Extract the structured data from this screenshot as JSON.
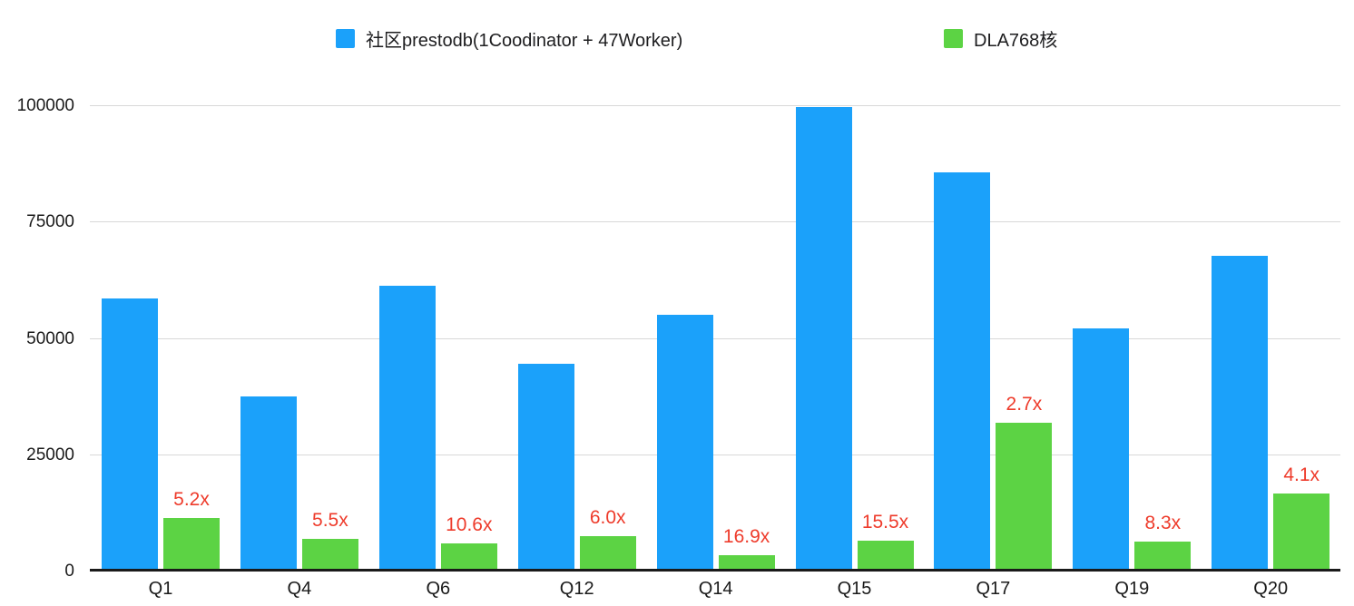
{
  "chart_data": {
    "type": "bar",
    "title": "",
    "xlabel": "",
    "ylabel": "",
    "categories": [
      "Q1",
      "Q4",
      "Q6",
      "Q12",
      "Q14",
      "Q15",
      "Q17",
      "Q19",
      "Q20"
    ],
    "series": [
      {
        "name": "社区prestodb(1Coodinator + 47Worker)",
        "color": "#1BA1FA",
        "values": [
          58500,
          37500,
          61200,
          44500,
          55000,
          99700,
          85500,
          52000,
          67700
        ]
      },
      {
        "name": "DLA768核",
        "color": "#5CD344",
        "values": [
          11250,
          6800,
          5800,
          7400,
          3250,
          6430,
          31700,
          6270,
          16500
        ]
      }
    ],
    "speedup_labels": [
      "5.2x",
      "5.5x",
      "10.6x",
      "6.0x",
      "16.9x",
      "15.5x",
      "2.7x",
      "8.3x",
      "4.1x"
    ],
    "speedup_color": "#EE3B2B",
    "y_ticks": [
      100000,
      75000,
      50000,
      25000,
      0
    ],
    "y_tick_labels": [
      "100000",
      "75000",
      "50000",
      "25000",
      "0"
    ],
    "ylim": [
      0,
      100000
    ],
    "grid": true,
    "gridline_color": "#d8d8d8",
    "axis_color": "#1a1a1a",
    "legend_position": "top"
  }
}
